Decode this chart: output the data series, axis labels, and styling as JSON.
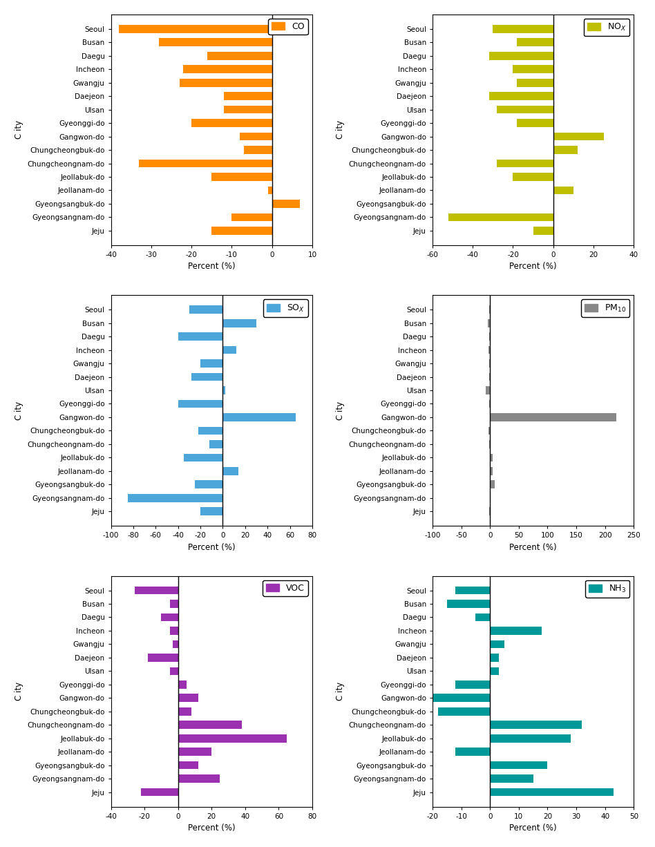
{
  "cities": [
    "Seoul",
    "Busan",
    "Daegu",
    "Incheon",
    "Gwangju",
    "Daejeon",
    "Ulsan",
    "Gyeonggi-do",
    "Gangwon-do",
    "Chungcheongbuk-do",
    "Chungcheongnam-do",
    "Jeollabuk-do",
    "Jeollanam-do",
    "Gyeongsangbuk-do",
    "Gyeongsangnam-do",
    "Jeju"
  ],
  "CO": [
    -38,
    -28,
    -16,
    -22,
    -23,
    -12,
    -12,
    -20,
    -8,
    -7,
    -33,
    -15,
    -1,
    7,
    -10,
    -15
  ],
  "CO_color": "#FF8C00",
  "CO_xlim": [
    -40,
    10
  ],
  "CO_xticks": [
    -40,
    -30,
    -20,
    -10,
    0,
    10
  ],
  "NOX": [
    -30,
    -18,
    -32,
    -20,
    -18,
    -32,
    -28,
    -18,
    25,
    12,
    -28,
    -20,
    10,
    0,
    -52,
    -10
  ],
  "NOX_color": "#BFBF00",
  "NOX_xlim": [
    -60,
    40
  ],
  "NOX_xticks": [
    -60,
    -40,
    -20,
    0,
    20,
    40
  ],
  "SOX": [
    -30,
    30,
    -40,
    12,
    -20,
    -28,
    2,
    -40,
    65,
    -22,
    -12,
    -35,
    14,
    -25,
    -85,
    -20
  ],
  "SOX_color": "#4DA6D9",
  "SOX_xlim": [
    -100,
    80
  ],
  "SOX_xticks": [
    -100,
    -80,
    -60,
    -40,
    -20,
    0,
    20,
    40,
    60,
    80
  ],
  "PM10": [
    -2,
    -4,
    -2,
    -3,
    -2,
    -2,
    -8,
    -2,
    220,
    -3,
    -2,
    5,
    5,
    8,
    0,
    -2
  ],
  "PM10_color": "#888888",
  "PM10_xlim": [
    -100,
    250
  ],
  "PM10_xticks": [
    -100,
    -50,
    0,
    50,
    100,
    150,
    200,
    250
  ],
  "VOC": [
    -26,
    -5,
    -10,
    -5,
    -3,
    -18,
    -5,
    5,
    12,
    8,
    38,
    65,
    20,
    12,
    25,
    -22
  ],
  "VOC_color": "#9B30B0",
  "VOC_xlim": [
    -40,
    80
  ],
  "VOC_xticks": [
    -40,
    -20,
    0,
    20,
    40,
    60,
    80
  ],
  "NH3": [
    -12,
    -15,
    -5,
    18,
    5,
    3,
    3,
    -12,
    -20,
    -18,
    32,
    28,
    -12,
    20,
    15,
    43
  ],
  "NH3_color": "#009999",
  "NH3_xlim": [
    -20,
    50
  ],
  "NH3_xticks": [
    -20,
    -10,
    0,
    10,
    20,
    30,
    40,
    50
  ]
}
